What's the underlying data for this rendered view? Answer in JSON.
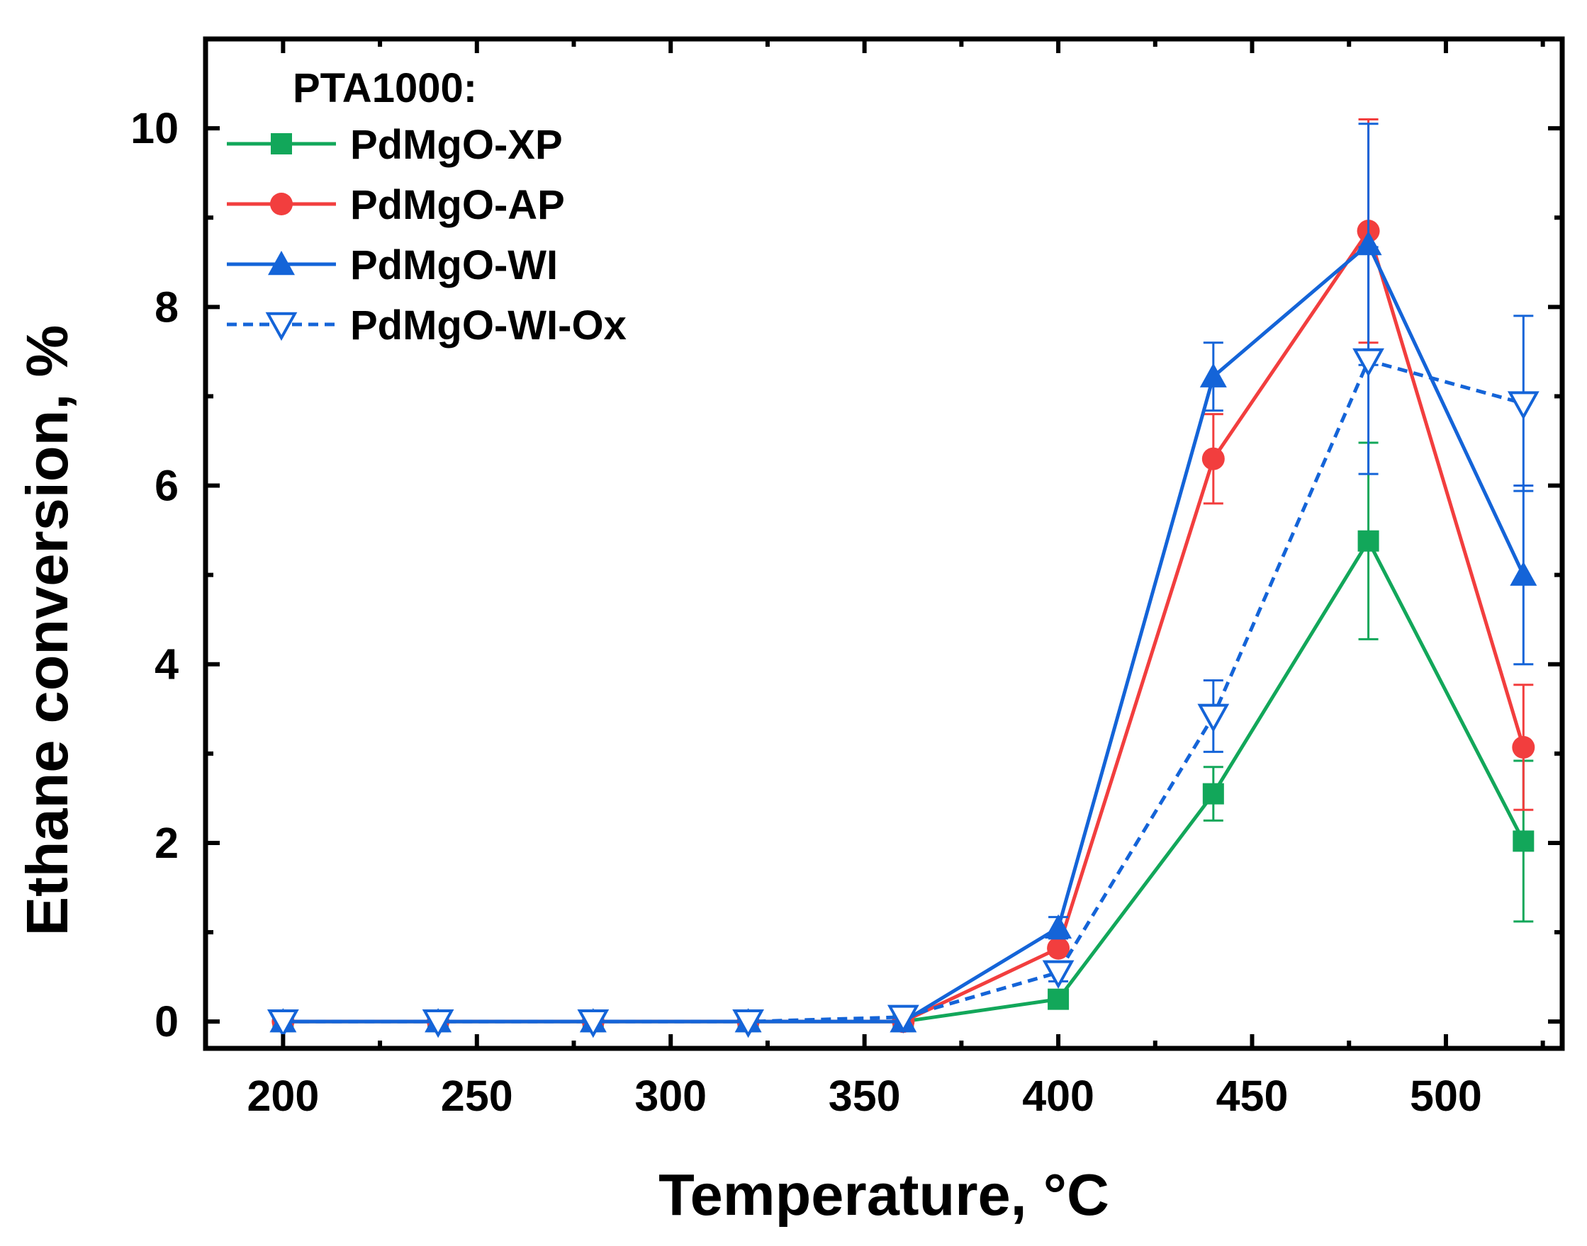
{
  "chart_data": {
    "type": "line",
    "xlabel": "Temperature, °C",
    "ylabel": "Ethane conversion, %",
    "xlim": [
      180,
      530
    ],
    "ylim": [
      -0.3,
      11
    ],
    "xticks": [
      200,
      250,
      300,
      350,
      400,
      450,
      500
    ],
    "yticks": [
      0,
      2,
      4,
      6,
      8,
      10
    ],
    "grid": false,
    "legend": {
      "title": "PTA1000:",
      "position": "top-left"
    },
    "series": [
      {
        "name": "PdMgO-XP",
        "color": "#12a75a",
        "marker": "square",
        "line": "solid",
        "x": [
          200,
          240,
          280,
          320,
          360,
          400,
          440,
          480,
          520
        ],
        "y": [
          0,
          0,
          0,
          0,
          0,
          0.25,
          2.55,
          5.38,
          2.02
        ],
        "err": [
          0,
          0,
          0,
          0,
          0,
          0,
          0.3,
          1.1,
          0.9
        ]
      },
      {
        "name": "PdMgO-AP",
        "color": "#f23e3e",
        "marker": "circle",
        "line": "solid",
        "x": [
          200,
          240,
          280,
          320,
          360,
          400,
          440,
          480,
          520
        ],
        "y": [
          0,
          0,
          0,
          0,
          0,
          0.82,
          6.3,
          8.85,
          3.07
        ],
        "err": [
          0,
          0,
          0,
          0,
          0,
          0,
          0.5,
          1.25,
          0.7
        ]
      },
      {
        "name": "PdMgO-WI",
        "color": "#1464d8",
        "marker": "triangle-up",
        "line": "solid",
        "x": [
          200,
          240,
          280,
          320,
          360,
          400,
          440,
          480,
          520
        ],
        "y": [
          0,
          0,
          0,
          0,
          0,
          1.05,
          7.22,
          8.7,
          5.0
        ],
        "err": [
          0,
          0,
          0,
          0,
          0,
          0.12,
          0.38,
          1.35,
          1.0
        ]
      },
      {
        "name": "PdMgO-WI-Ox",
        "color": "#1464d8",
        "marker": "triangle-down-open",
        "line": "dashed",
        "x": [
          200,
          240,
          280,
          320,
          360,
          400,
          440,
          480,
          520
        ],
        "y": [
          0,
          0,
          0,
          0,
          0.05,
          0.55,
          3.42,
          7.4,
          6.92
        ],
        "err": [
          0,
          0,
          0,
          0,
          0,
          0.1,
          0.4,
          1.27,
          0.98
        ]
      }
    ]
  }
}
